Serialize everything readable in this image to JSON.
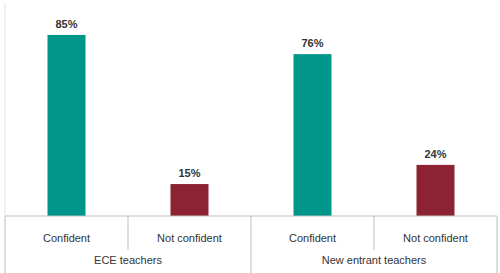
{
  "chart_data": {
    "type": "bar",
    "groups": [
      "ECE teachers",
      "New entrant teachers"
    ],
    "categories": [
      "Confident",
      "Not confident",
      "Confident",
      "Not confident"
    ],
    "values": [
      85,
      15,
      76,
      24
    ],
    "value_labels": [
      "85%",
      "15%",
      "76%",
      "24%"
    ],
    "colors": [
      "#00968a",
      "#8b2332",
      "#00968a",
      "#8b2332"
    ],
    "ylim": [
      0,
      100
    ],
    "data_labels": true,
    "tick_labels": "x",
    "grid": false
  }
}
